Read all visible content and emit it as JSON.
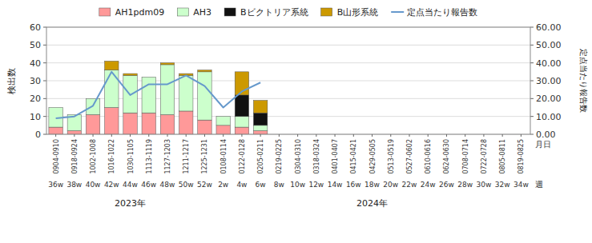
{
  "chart_data": {
    "type": "bar",
    "stacked": true,
    "categories": [
      "36w",
      "38w",
      "40w",
      "42w",
      "44w",
      "46w",
      "48w",
      "50w",
      "52w",
      "2w",
      "4w",
      "6w",
      "8w",
      "10w",
      "12w",
      "14w",
      "16w",
      "18w",
      "20w",
      "22w",
      "24w",
      "26w",
      "28w",
      "30w",
      "32w",
      "34w"
    ],
    "dates": [
      "0904-0910",
      "0918-0924",
      "1002-1008",
      "1016-1022",
      "1030-1105",
      "1113-1119",
      "1127-1203",
      "1211-1217",
      "1225-1231",
      "0108-0114",
      "0122-0128",
      "0205-0211",
      "0219-0225",
      "0304-0310",
      "0318-0324",
      "0401-0407",
      "0415-0421",
      "0429-0505",
      "0513-0519",
      "0527-0602",
      "0610-0616",
      "0624-0630",
      "0708-0714",
      "0722-0728",
      "0805-0811",
      "0819-0825"
    ],
    "xlabel_date": "月日",
    "xlabel_week": "週",
    "annotations": [
      "2023年",
      "2024年"
    ],
    "ylabel": "検出数",
    "y2label": "定点当たり報告数",
    "ylim": [
      0,
      60
    ],
    "yticks": [
      0,
      10,
      20,
      30,
      40,
      50,
      60
    ],
    "y2lim": [
      0,
      60
    ],
    "y2ticks": [
      {
        "value": 0,
        "label": "0.00"
      },
      {
        "value": 10,
        "label": "10.00"
      },
      {
        "value": 20,
        "label": "20.00"
      },
      {
        "value": 30,
        "label": "30.00"
      },
      {
        "value": 40,
        "label": "40.00"
      },
      {
        "value": 50,
        "label": "50.00"
      },
      {
        "value": 60,
        "label": "60.00"
      }
    ],
    "grid": true,
    "legend": "top",
    "series": [
      {
        "name": "AH1pdm09",
        "color": "#FF9999",
        "values": [
          4,
          2,
          11,
          15,
          12,
          12,
          11,
          13,
          8,
          5,
          4,
          2,
          0,
          0,
          0,
          0,
          0,
          0,
          0,
          0,
          0,
          0,
          0,
          0,
          0,
          0
        ]
      },
      {
        "name": "AH3",
        "color": "#CCFFCC",
        "values": [
          11,
          9,
          9,
          21,
          21,
          20,
          28,
          20,
          27,
          5,
          6,
          3,
          0,
          0,
          0,
          0,
          0,
          0,
          0,
          0,
          0,
          0,
          0,
          0,
          0,
          0
        ]
      },
      {
        "name": "Bビクトリア系統",
        "color": "#111111",
        "values": [
          0,
          0,
          0,
          0,
          0,
          0,
          0,
          0,
          0,
          0,
          12,
          7,
          0,
          0,
          0,
          0,
          0,
          0,
          0,
          0,
          0,
          0,
          0,
          0,
          0,
          0
        ]
      },
      {
        "name": "B山形系統",
        "color": "#CC9900",
        "values": [
          0,
          0,
          0,
          5,
          1,
          0,
          1,
          1,
          1,
          0,
          13,
          7,
          0,
          0,
          0,
          0,
          0,
          0,
          0,
          0,
          0,
          0,
          0,
          0,
          0,
          0
        ]
      },
      {
        "name": "定点当たり報告数",
        "type": "line",
        "axis": "y2",
        "color": "#6699CC",
        "values": [
          9,
          10,
          16,
          35,
          22,
          28,
          28,
          33,
          27,
          15,
          24,
          29,
          null,
          null,
          null,
          null,
          null,
          null,
          null,
          null,
          null,
          null,
          null,
          null,
          null,
          null
        ]
      }
    ]
  }
}
